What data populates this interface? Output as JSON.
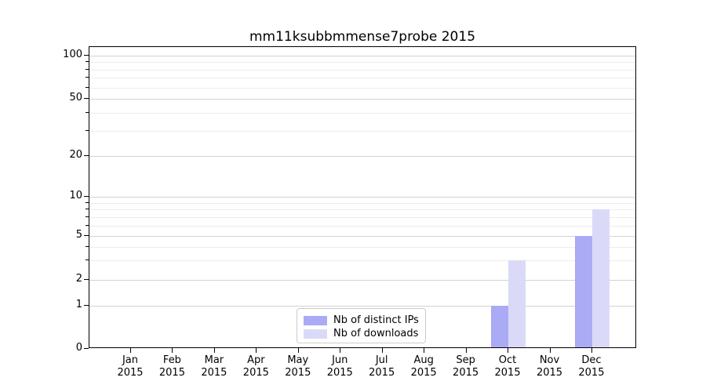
{
  "chart_data": {
    "type": "bar",
    "title": "mm11ksubbmmense7probe 2015",
    "categories": [
      "Jan",
      "Feb",
      "Mar",
      "Apr",
      "May",
      "Jun",
      "Jul",
      "Aug",
      "Sep",
      "Oct",
      "Nov",
      "Dec"
    ],
    "category_year": "2015",
    "series": [
      {
        "name": "Nb of distinct IPs",
        "color": "#aaaaf5",
        "values": [
          0,
          0,
          0,
          0,
          0,
          0,
          0,
          0,
          0,
          1,
          0,
          5
        ]
      },
      {
        "name": "Nb of downloads",
        "color": "#dadaf8",
        "values": [
          0,
          0,
          0,
          0,
          0,
          0,
          0,
          0,
          0,
          3,
          0,
          8
        ]
      }
    ],
    "y_axis": {
      "scale": "symlog",
      "range": [
        0,
        100
      ],
      "major_ticks": [
        0,
        1,
        2,
        5,
        10,
        20,
        50,
        100
      ],
      "minor_ticks": [
        3,
        4,
        6,
        7,
        8,
        9,
        30,
        40,
        60,
        70,
        80,
        90
      ]
    },
    "xlabel": "",
    "ylabel": "",
    "grid": true,
    "legend_position": "bottom-center"
  },
  "colors": {
    "background": "#ffffff",
    "axis_frame": "#000000",
    "major_grid": "#d3d3d3",
    "minor_grid": "#ececec",
    "bar_distinct_ips": "#aaaaf5",
    "bar_downloads": "#dadaf8",
    "legend_border": "#cccccc"
  }
}
